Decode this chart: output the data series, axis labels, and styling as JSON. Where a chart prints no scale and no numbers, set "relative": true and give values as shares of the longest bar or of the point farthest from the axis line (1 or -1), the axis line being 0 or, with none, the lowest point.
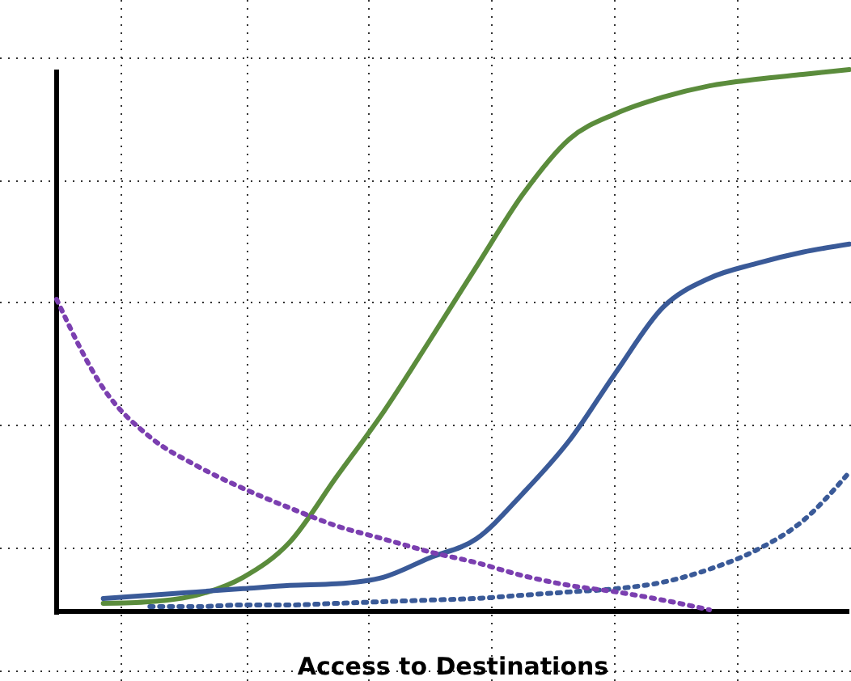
{
  "chart_data": {
    "type": "line",
    "xlabel": "Access to Destinations",
    "relative": true,
    "grid": true,
    "marker": "none",
    "categories": [
      null,
      null,
      null,
      null,
      null,
      null,
      null,
      null,
      null,
      null,
      null,
      null,
      null,
      null,
      null,
      null,
      null,
      null
    ],
    "series": [
      {
        "color": "#5b8c3c",
        "line_style": "solid",
        "values": [
          null,
          0.015,
          0.018,
          0.03,
          0.063,
          0.128,
          0.248,
          0.367,
          0.5,
          0.636,
          0.77,
          0.872,
          0.919,
          0.949,
          0.97,
          0.982,
          0.991,
          1
        ]
      },
      {
        "color": "#3a5a98",
        "line_style": "solid",
        "values": [
          null,
          0.024,
          0.03,
          0.036,
          0.042,
          0.048,
          0.051,
          0.063,
          0.099,
          0.134,
          0.218,
          0.316,
          0.442,
          0.561,
          0.615,
          0.642,
          0.663,
          0.678
        ]
      },
      {
        "color": "#3a5a98",
        "line_style": "dotted",
        "values": [
          null,
          null,
          0.009,
          0.009,
          0.012,
          0.012,
          0.015,
          0.018,
          0.021,
          0.024,
          0.03,
          0.036,
          0.042,
          0.054,
          0.078,
          0.113,
          0.167,
          0.257
        ]
      },
      {
        "color": "#7b3fb0",
        "line_style": "dotted",
        "values": [
          0.576,
          0.412,
          0.322,
          0.269,
          0.227,
          0.191,
          0.158,
          0.134,
          0.11,
          0.09,
          0.066,
          0.048,
          0.036,
          0.021,
          0.003,
          null,
          null,
          null
        ]
      }
    ]
  }
}
